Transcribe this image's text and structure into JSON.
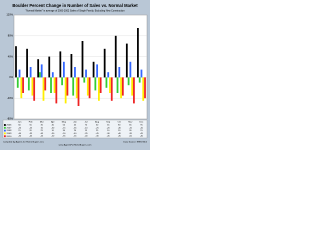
{
  "chart_data": {
    "type": "bar",
    "title": "Boulder Percent Change in Number of Sales vs. Normal Market",
    "subtitle": "\"Normal Market\" is average of 2000-2002 Sales of Single Family, Excluding New Construction",
    "footer_left": "Compiled by Agents for Home Buyers LLC",
    "footer_center": "www.AgentsForHomeBuyers.com",
    "footer_right": "Data Source: IRES MLS",
    "categories": [
      "Jan",
      "Feb",
      "Mar",
      "Apr",
      "May",
      "Jun",
      "Jul",
      "Aug",
      "Sep",
      "Oct",
      "Nov",
      "Dec"
    ],
    "series": [
      {
        "name": "2006",
        "color": "#000000",
        "values": [
          60,
          55,
          35,
          40,
          50,
          45,
          70,
          30,
          55,
          80,
          65,
          95
        ]
      },
      {
        "name": "2007",
        "color": "#33cc33",
        "values": [
          -20,
          -25,
          10,
          -30,
          -15,
          -35,
          -10,
          -25,
          -20,
          -30,
          -15,
          -10
        ]
      },
      {
        "name": "2008",
        "color": "#3366ff",
        "values": [
          15,
          20,
          25,
          10,
          30,
          20,
          15,
          25,
          10,
          20,
          30,
          15
        ]
      },
      {
        "name": "2009",
        "color": "#ffee00",
        "values": [
          -40,
          -35,
          -45,
          -30,
          -50,
          -40,
          -35,
          -45,
          -30,
          -40,
          -35,
          -45
        ]
      },
      {
        "name": "2010",
        "color": "#ee2222",
        "values": [
          -30,
          -45,
          -25,
          -50,
          -35,
          -55,
          -40,
          -30,
          -45,
          -35,
          -50,
          -40
        ]
      }
    ],
    "ylim": [
      -80,
      120
    ],
    "yticks": [
      {
        "value": -80,
        "label": "-80%"
      },
      {
        "value": -40,
        "label": "-40%"
      },
      {
        "value": 0,
        "label": "0%"
      },
      {
        "value": 40,
        "label": "40%"
      },
      {
        "value": 80,
        "label": "80%"
      },
      {
        "value": 120,
        "label": "120%"
      }
    ],
    "grid": true
  }
}
